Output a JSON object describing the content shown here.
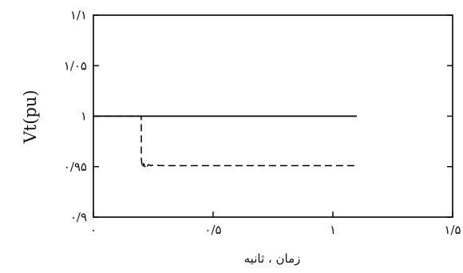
{
  "chart_data": {
    "type": "line",
    "ylabel": "Vt(pu)",
    "xlabel": "زمان ، ثانیه",
    "xlim": [
      0,
      1.5
    ],
    "ylim": [
      0.9,
      1.1
    ],
    "x_ticks": [
      0,
      0.5,
      1,
      1.5
    ],
    "x_tick_labels": [
      "۰",
      "۰/۵",
      "۱",
      "۱/۵"
    ],
    "y_ticks": [
      0.9,
      0.95,
      1,
      1.05,
      1.1
    ],
    "y_tick_labels": [
      "۰/۹",
      "۰/۹۵",
      "۱",
      "۱/۰۵",
      "۱/۱"
    ],
    "grid": false,
    "series": [
      {
        "style": "solid",
        "color": "#000000",
        "x": [
          0,
          1.1
        ],
        "y": [
          1.0,
          1.0
        ]
      },
      {
        "style": "dashed",
        "color": "#000000",
        "x": [
          0,
          0.2,
          0.2,
          0.205,
          0.21,
          0.215,
          0.22,
          0.225,
          0.23,
          0.24,
          0.25,
          0.27,
          0.3,
          0.35,
          1.1
        ],
        "y": [
          1.0,
          1.0,
          0.957,
          0.949,
          0.953,
          0.95,
          0.9525,
          0.9505,
          0.952,
          0.951,
          0.9515,
          0.9512,
          0.951,
          0.951,
          0.951
        ]
      }
    ]
  }
}
